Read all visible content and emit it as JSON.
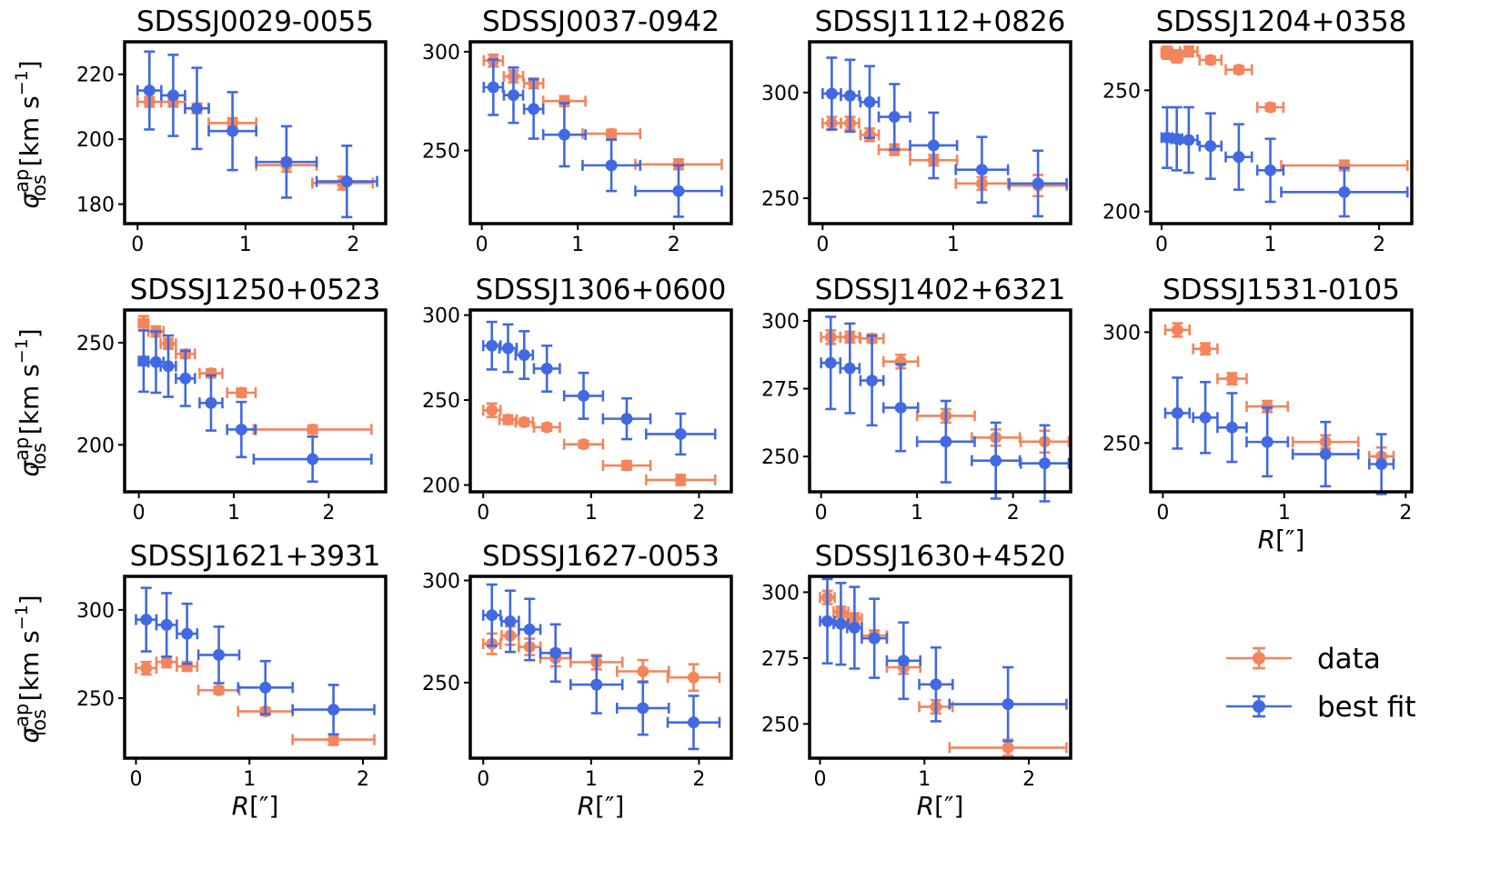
{
  "legend": {
    "data_label": "data",
    "fit_label": "best fit"
  },
  "colors": {
    "data": "#F4845A",
    "fit": "#4169E1",
    "axes": "#000000"
  },
  "y_axis_label": {
    "main": "σ",
    "sup": "ap",
    "sub": "los",
    "unit": " [km s",
    "unit_exp": "−1",
    "unit_close": "]"
  },
  "x_axis_label": {
    "main": "R",
    "unit": "[″]"
  },
  "chart_data": [
    {
      "type": "scatter",
      "title": "SDSSJ0029-0055",
      "xlim": [
        -0.12,
        2.3
      ],
      "ylim": [
        174,
        230
      ],
      "xticks": [
        0,
        1,
        2
      ],
      "yticks": [
        180,
        200,
        220
      ],
      "series": [
        {
          "name": "data",
          "x": [
            0.11,
            0.33,
            0.55,
            0.88,
            1.38,
            1.9
          ],
          "xerr": [
            0.11,
            0.11,
            0.11,
            0.22,
            0.28,
            0.28
          ],
          "y": [
            211.5,
            211.5,
            209.5,
            205,
            192,
            186.5
          ],
          "yerr": [
            1.5,
            1.5,
            1.5,
            1.5,
            2,
            2
          ]
        },
        {
          "name": "best fit",
          "x": [
            0.11,
            0.33,
            0.55,
            0.88,
            1.38,
            1.94
          ],
          "xerr": [
            0.11,
            0.11,
            0.11,
            0.22,
            0.28,
            0.28
          ],
          "y": [
            215,
            213.5,
            209.5,
            202.5,
            193,
            187
          ],
          "yerr": [
            12,
            12.5,
            12.5,
            12,
            11,
            11
          ]
        }
      ]
    },
    {
      "type": "scatter",
      "title": "SDSSJ0037-0942",
      "xlim": [
        -0.12,
        2.6
      ],
      "ylim": [
        213,
        305
      ],
      "xticks": [
        0,
        1,
        2
      ],
      "yticks": [
        250,
        300
      ],
      "series": [
        {
          "name": "data",
          "x": [
            0.12,
            0.33,
            0.54,
            0.86,
            1.35,
            2.05
          ],
          "xerr": [
            0.1,
            0.1,
            0.1,
            0.22,
            0.3,
            0.45
          ],
          "y": [
            295.5,
            287.5,
            284,
            275,
            258.5,
            243
          ],
          "yerr": [
            3,
            3,
            2.5,
            2.5,
            2,
            2.5
          ]
        },
        {
          "name": "best fit",
          "x": [
            0.12,
            0.33,
            0.54,
            0.86,
            1.35,
            2.05
          ],
          "xerr": [
            0.1,
            0.1,
            0.1,
            0.22,
            0.3,
            0.45
          ],
          "y": [
            282,
            278,
            271,
            258,
            242.5,
            229.5
          ],
          "yerr": [
            14,
            14,
            15,
            16,
            13,
            13
          ]
        }
      ]
    },
    {
      "type": "scatter",
      "title": "SDSSJ1112+0826",
      "xlim": [
        -0.1,
        1.9
      ],
      "ylim": [
        238,
        324
      ],
      "xticks": [
        0,
        1
      ],
      "yticks": [
        250,
        300
      ],
      "series": [
        {
          "name": "data",
          "x": [
            0.07,
            0.21,
            0.36,
            0.55,
            0.85,
            1.22,
            1.65
          ],
          "xerr": [
            0.07,
            0.07,
            0.07,
            0.12,
            0.18,
            0.2,
            0.22
          ],
          "y": [
            285.5,
            285.5,
            280,
            273,
            268,
            257,
            256
          ],
          "yerr": [
            3,
            3,
            3,
            2.5,
            2.5,
            3,
            5
          ]
        },
        {
          "name": "best fit",
          "x": [
            0.07,
            0.21,
            0.36,
            0.55,
            0.85,
            1.22,
            1.65
          ],
          "xerr": [
            0.07,
            0.07,
            0.07,
            0.12,
            0.18,
            0.2,
            0.22
          ],
          "y": [
            299.5,
            298.5,
            295.5,
            288.5,
            275,
            263.5,
            257
          ],
          "yerr": [
            17,
            17,
            17,
            15.5,
            15.5,
            15.5,
            15.5
          ]
        }
      ]
    },
    {
      "type": "scatter",
      "title": "SDSSJ1204+0358",
      "xlim": [
        -0.1,
        2.3
      ],
      "ylim": [
        195,
        270
      ],
      "xticks": [
        0,
        1,
        2
      ],
      "yticks": [
        200,
        250
      ],
      "series": [
        {
          "name": "data",
          "x": [
            0.05,
            0.14,
            0.25,
            0.45,
            0.71,
            1.0,
            1.68
          ],
          "xerr": [
            0.05,
            0.05,
            0.08,
            0.1,
            0.12,
            0.12,
            0.58
          ],
          "y": [
            265.5,
            264,
            266,
            262.5,
            258.5,
            243,
            219
          ],
          "yerr": [
            2.5,
            2.5,
            2,
            1.5,
            1.5,
            1.5,
            2
          ]
        },
        {
          "name": "best fit",
          "x": [
            0.05,
            0.14,
            0.25,
            0.45,
            0.71,
            1.0,
            1.68
          ],
          "xerr": [
            0.05,
            0.05,
            0.08,
            0.1,
            0.12,
            0.12,
            0.58
          ],
          "y": [
            230.5,
            230,
            229.5,
            227,
            222.5,
            217,
            208
          ],
          "yerr": [
            12.5,
            13,
            13.5,
            13.5,
            13.5,
            13,
            10
          ]
        }
      ]
    },
    {
      "type": "scatter",
      "title": "SDSSJ1250+0523",
      "xlim": [
        -0.15,
        2.6
      ],
      "ylim": [
        177,
        266
      ],
      "xticks": [
        0,
        1,
        2
      ],
      "yticks": [
        200,
        250
      ],
      "series": [
        {
          "name": "data",
          "x": [
            0.05,
            0.18,
            0.31,
            0.49,
            0.76,
            1.08,
            1.83
          ],
          "xerr": [
            0.05,
            0.08,
            0.08,
            0.1,
            0.12,
            0.15,
            0.62
          ],
          "y": [
            259.5,
            255.5,
            249.5,
            244.5,
            235,
            225.5,
            207.5
          ],
          "yerr": [
            3.5,
            2.5,
            2.5,
            2,
            2,
            2,
            2
          ]
        },
        {
          "name": "best fit",
          "x": [
            0.05,
            0.18,
            0.31,
            0.49,
            0.76,
            1.08,
            1.83
          ],
          "xerr": [
            0.05,
            0.08,
            0.08,
            0.1,
            0.12,
            0.15,
            0.62
          ],
          "y": [
            241,
            240.5,
            238.5,
            232.5,
            220.5,
            207.5,
            193
          ],
          "yerr": [
            15,
            15,
            15,
            13.5,
            13.5,
            13.5,
            11
          ]
        }
      ]
    },
    {
      "type": "scatter",
      "title": "SDSSJ1306+0600",
      "xlim": [
        -0.12,
        2.3
      ],
      "ylim": [
        196,
        303
      ],
      "xticks": [
        0,
        1,
        2
      ],
      "yticks": [
        200,
        250,
        300
      ],
      "series": [
        {
          "name": "data",
          "x": [
            0.08,
            0.23,
            0.38,
            0.59,
            0.93,
            1.33,
            1.83
          ],
          "xerr": [
            0.08,
            0.08,
            0.08,
            0.12,
            0.18,
            0.22,
            0.32
          ],
          "y": [
            244,
            238.5,
            237,
            234,
            224,
            211.5,
            203
          ],
          "yerr": [
            4,
            2.5,
            2,
            2,
            2,
            2.5,
            3
          ]
        },
        {
          "name": "best fit",
          "x": [
            0.08,
            0.23,
            0.38,
            0.59,
            0.93,
            1.33,
            1.83
          ],
          "xerr": [
            0.08,
            0.08,
            0.08,
            0.12,
            0.18,
            0.22,
            0.32
          ],
          "y": [
            282,
            280.5,
            276.5,
            268.5,
            252.5,
            239,
            230
          ],
          "yerr": [
            14,
            14,
            14,
            13.5,
            13.5,
            12,
            12
          ]
        }
      ]
    },
    {
      "type": "scatter",
      "title": "SDSSJ1402+6321",
      "xlim": [
        -0.12,
        2.6
      ],
      "ylim": [
        237,
        304
      ],
      "xticks": [
        0,
        1,
        2
      ],
      "yticks": [
        250,
        275,
        300
      ],
      "series": [
        {
          "name": "data",
          "x": [
            0.1,
            0.3,
            0.53,
            0.83,
            1.3,
            1.82,
            2.33
          ],
          "xerr": [
            0.1,
            0.1,
            0.12,
            0.18,
            0.3,
            0.25,
            0.25
          ],
          "y": [
            294,
            294,
            293.5,
            285,
            265,
            257,
            255.5
          ],
          "yerr": [
            2.5,
            2,
            1.5,
            2.5,
            2.5,
            3,
            4
          ]
        },
        {
          "name": "best fit",
          "x": [
            0.1,
            0.3,
            0.53,
            0.83,
            1.3,
            1.82,
            2.33
          ],
          "xerr": [
            0.1,
            0.1,
            0.12,
            0.18,
            0.3,
            0.25,
            0.25
          ],
          "y": [
            284.5,
            282.5,
            278,
            268,
            255.5,
            248.5,
            247.5
          ],
          "yerr": [
            17,
            16.5,
            16.5,
            16,
            15,
            14,
            14
          ]
        }
      ]
    },
    {
      "type": "scatter",
      "title": "SDSSJ1531-0105",
      "xlim": [
        -0.1,
        2.05
      ],
      "ylim": [
        228,
        310
      ],
      "xticks": [
        0,
        1,
        2
      ],
      "yticks": [
        250,
        300
      ],
      "series": [
        {
          "name": "data",
          "x": [
            0.12,
            0.35,
            0.57,
            0.86,
            1.34,
            1.8
          ],
          "xerr": [
            0.1,
            0.1,
            0.12,
            0.17,
            0.27,
            0.1
          ],
          "y": [
            301,
            292.5,
            279,
            266.5,
            250.5,
            244
          ],
          "yerr": [
            3,
            2.5,
            2.5,
            2.5,
            3,
            4
          ]
        },
        {
          "name": "best fit",
          "x": [
            0.12,
            0.35,
            0.57,
            0.86,
            1.34,
            1.8
          ],
          "xerr": [
            0.1,
            0.1,
            0.12,
            0.17,
            0.27,
            0.1
          ],
          "y": [
            263.5,
            261.5,
            257,
            250.5,
            245,
            240.5
          ],
          "yerr": [
            16,
            16,
            15.5,
            15.5,
            14.5,
            13.5
          ]
        }
      ]
    },
    {
      "type": "scatter",
      "title": "SDSSJ1621+3931",
      "xlim": [
        -0.1,
        2.2
      ],
      "ylim": [
        216,
        319
      ],
      "xticks": [
        0,
        1,
        2
      ],
      "yticks": [
        250,
        300
      ],
      "series": [
        {
          "name": "data",
          "x": [
            0.09,
            0.27,
            0.45,
            0.73,
            1.14,
            1.74
          ],
          "xerr": [
            0.09,
            0.09,
            0.09,
            0.18,
            0.24,
            0.36
          ],
          "y": [
            267,
            270.5,
            268,
            254.5,
            242.5,
            226.5
          ],
          "yerr": [
            3.5,
            3,
            2.5,
            2,
            2,
            3
          ]
        },
        {
          "name": "best fit",
          "x": [
            0.09,
            0.27,
            0.45,
            0.73,
            1.14,
            1.74
          ],
          "xerr": [
            0.09,
            0.09,
            0.09,
            0.18,
            0.24,
            0.36
          ],
          "y": [
            294.5,
            291.5,
            286.5,
            274.5,
            256,
            243.5
          ],
          "yerr": [
            18,
            18,
            17,
            16,
            15,
            14
          ]
        }
      ]
    },
    {
      "type": "scatter",
      "title": "SDSSJ1627-0053",
      "xlim": [
        -0.12,
        2.3
      ],
      "ylim": [
        213,
        302
      ],
      "xticks": [
        0,
        1,
        2
      ],
      "yticks": [
        250,
        300
      ],
      "series": [
        {
          "name": "data",
          "x": [
            0.08,
            0.25,
            0.43,
            0.67,
            1.05,
            1.48,
            1.95
          ],
          "xerr": [
            0.08,
            0.08,
            0.1,
            0.14,
            0.24,
            0.24,
            0.24
          ],
          "y": [
            269,
            273,
            267.5,
            262,
            260,
            255.5,
            252.5
          ],
          "yerr": [
            5,
            4.5,
            4,
            4,
            3.5,
            5.5,
            6.5
          ]
        },
        {
          "name": "best fit",
          "x": [
            0.08,
            0.25,
            0.43,
            0.67,
            1.05,
            1.48,
            1.95
          ],
          "xerr": [
            0.08,
            0.08,
            0.1,
            0.14,
            0.24,
            0.24,
            0.24
          ],
          "y": [
            283,
            280,
            276,
            264.5,
            249,
            237.5,
            230.5
          ],
          "yerr": [
            15,
            15,
            15,
            14,
            14,
            13,
            13
          ]
        }
      ]
    },
    {
      "type": "scatter",
      "title": "SDSSJ1630+4520",
      "xlim": [
        -0.1,
        2.4
      ],
      "ylim": [
        237,
        306
      ],
      "xticks": [
        0,
        1,
        2
      ],
      "yticks": [
        250,
        275,
        300
      ],
      "series": [
        {
          "name": "data",
          "x": [
            0.07,
            0.2,
            0.33,
            0.52,
            0.8,
            1.11,
            1.8
          ],
          "xerr": [
            0.07,
            0.07,
            0.07,
            0.12,
            0.16,
            0.16,
            0.56
          ],
          "y": [
            298,
            292.5,
            290,
            283.5,
            271.5,
            256.5,
            241
          ],
          "yerr": [
            2.5,
            2,
            2,
            2,
            2.5,
            2.5,
            3
          ]
        },
        {
          "name": "best fit",
          "x": [
            0.07,
            0.2,
            0.33,
            0.52,
            0.8,
            1.11,
            1.8
          ],
          "xerr": [
            0.07,
            0.07,
            0.07,
            0.12,
            0.16,
            0.16,
            0.56
          ],
          "y": [
            289,
            288,
            286.5,
            282.5,
            274,
            265,
            257.5
          ],
          "yerr": [
            16,
            15.5,
            15.5,
            15,
            14.5,
            14,
            14
          ]
        }
      ]
    }
  ]
}
